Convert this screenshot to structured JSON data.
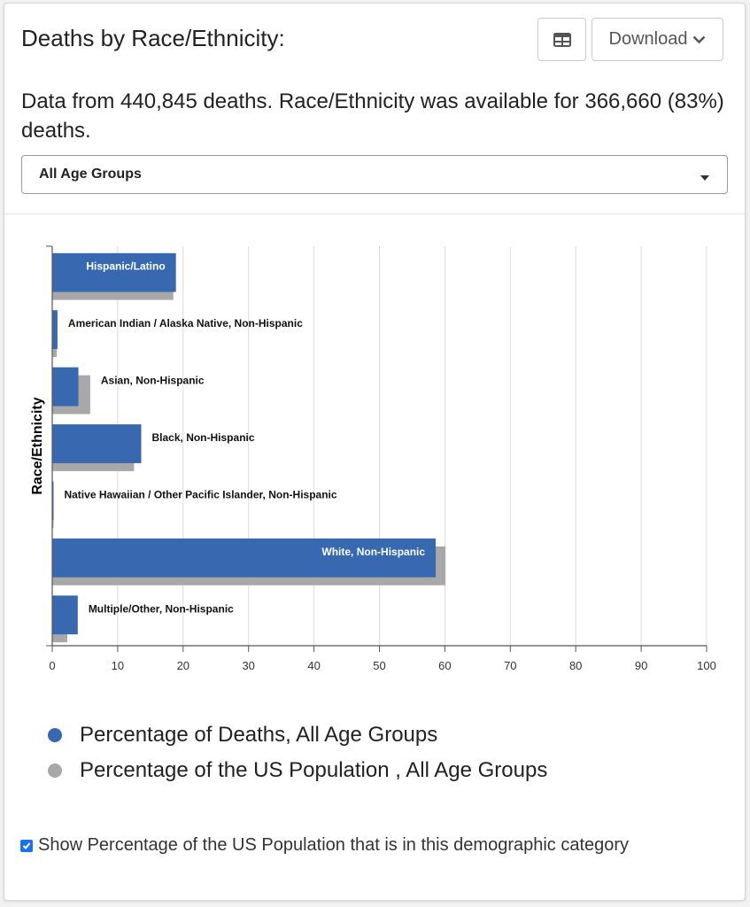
{
  "card": {
    "title": "Deaths by Race/Ethnicity:",
    "download_label": "Download",
    "table_icon": "table-icon",
    "chevron_icon": "chevron-down-icon",
    "description": "Data from 440,845 deaths. Race/Ethnicity was available for 366,660 (83%) deaths.",
    "age_select": {
      "selected": "All Age Groups"
    }
  },
  "chart_data": {
    "type": "bar",
    "orientation": "horizontal",
    "ylabel": "Race/Ethnicity",
    "xlabel": "",
    "xlim": [
      0,
      100
    ],
    "xticks": [
      0,
      10,
      20,
      30,
      40,
      50,
      60,
      70,
      80,
      90,
      100
    ],
    "categories": [
      "Hispanic/Latino",
      "American Indian / Alaska Native, Non-Hispanic",
      "Asian, Non-Hispanic",
      "Black, Non-Hispanic",
      "Native Hawaiian / Other Pacific Islander, Non-Hispanic",
      "White, Non-Hispanic",
      "Multiple/Other, Non-Hispanic"
    ],
    "series": [
      {
        "name": "Percentage of Deaths, All Age Groups",
        "color": "#3768b0",
        "values": [
          18.9,
          0.8,
          4.0,
          13.6,
          0.2,
          58.6,
          3.9
        ]
      },
      {
        "name": "Percentage of the US Population , All Age Groups",
        "color": "#a8a8a8",
        "values": [
          18.5,
          0.7,
          5.8,
          12.5,
          0.2,
          60.1,
          2.3
        ]
      }
    ],
    "grid": true,
    "legend_position": "bottom"
  },
  "toggle": {
    "checked": true,
    "label": "Show Percentage of the US Population that is in this demographic category"
  }
}
